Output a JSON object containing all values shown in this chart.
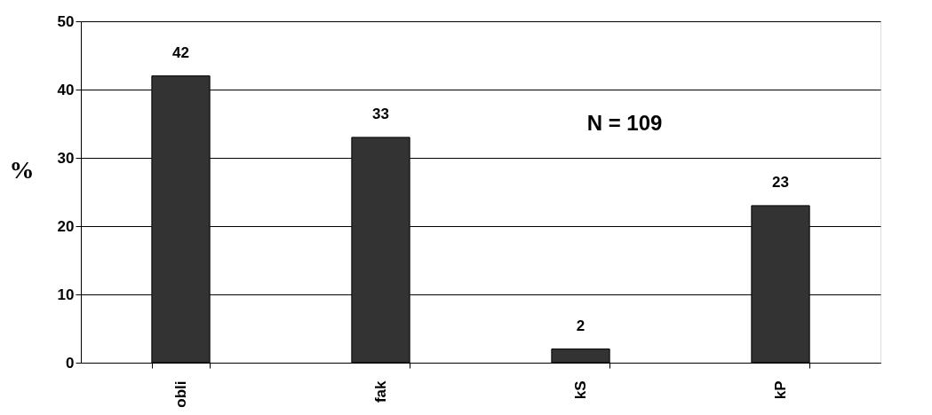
{
  "chart_data": {
    "type": "bar",
    "categories": [
      "obli",
      "fak",
      "kS",
      "kP"
    ],
    "values": [
      42,
      33,
      2,
      23
    ],
    "color": "#333333",
    "ylabel": "%",
    "ylim": [
      0,
      50
    ],
    "yticks": [
      0,
      10,
      20,
      30,
      40,
      50
    ],
    "grid": "y",
    "data_labels": true,
    "annotations": [
      "N = 109"
    ]
  }
}
